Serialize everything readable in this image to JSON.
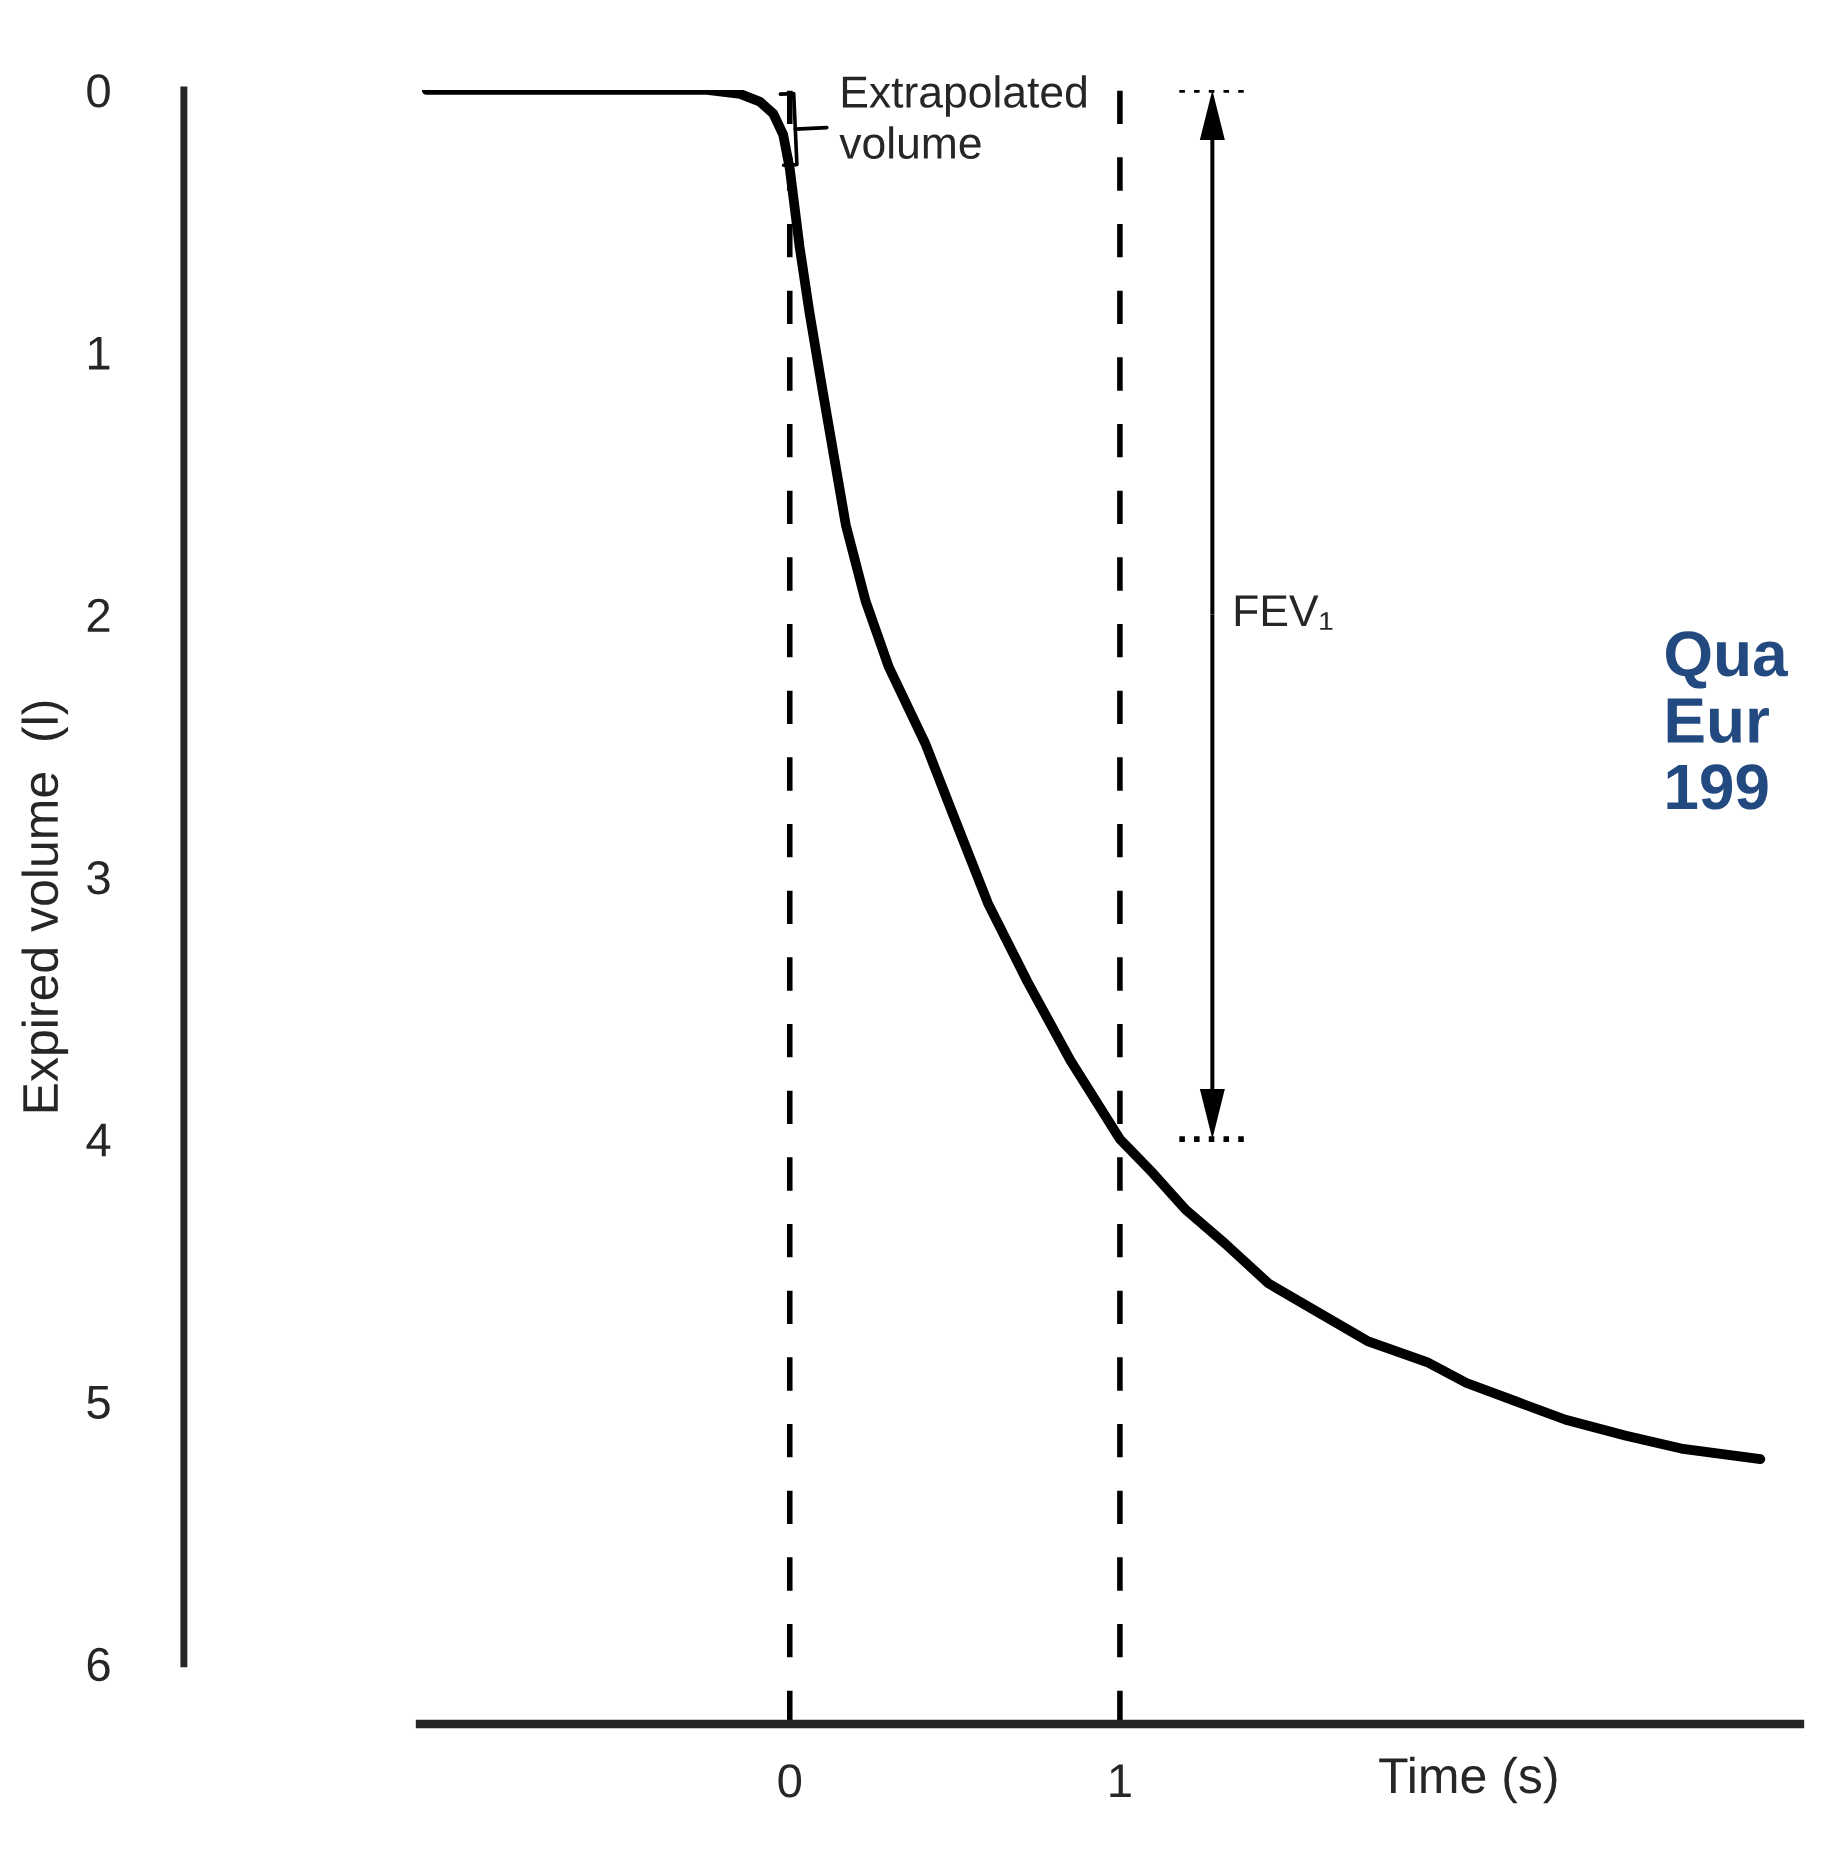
{
  "chart_data": {
    "type": "line",
    "xlabel": "Time (s)",
    "ylabel": "Expired volume  (l)",
    "series": [
      {
        "color": "#000000",
        "x": [
          -1.1,
          -0.25,
          -0.15,
          -0.09,
          -0.05,
          -0.02,
          0,
          0.03,
          0.06,
          0.1,
          0.17,
          0.23,
          0.3,
          0.41,
          0.5,
          0.6,
          0.72,
          0.85,
          0.9,
          1,
          1.1,
          1.2,
          1.32,
          1.45,
          1.6,
          1.75,
          1.93,
          2.05,
          2.2,
          2.35,
          2.53,
          2.7,
          2.94
        ],
        "values": [
          0,
          0,
          0.015,
          0.045,
          0.09,
          0.17,
          0.3,
          0.6,
          0.85,
          1.15,
          1.66,
          1.95,
          2.2,
          2.49,
          2.78,
          3.1,
          3.4,
          3.7,
          3.8,
          4.0,
          4.13,
          4.27,
          4.4,
          4.55,
          4.66,
          4.77,
          4.85,
          4.93,
          5.0,
          5.07,
          5.13,
          5.18,
          5.22
        ]
      }
    ],
    "xlim": [
      -1.12,
      3.06
    ],
    "xticks": [
      0,
      1
    ],
    "ylim": [
      6.23,
      0
    ],
    "yticks": [
      0,
      1,
      2,
      3,
      4,
      5,
      6
    ],
    "ref_lines": [
      {
        "axis": "x",
        "value": 0,
        "line_style": "dashed",
        "color": "#000000"
      },
      {
        "axis": "x",
        "value": 1,
        "line_style": "dashed",
        "color": "#000000"
      }
    ],
    "annotations": [
      {
        "text": "Extrapolated\nvolume",
        "x": 0,
        "y": 0.15
      },
      "FEV₁",
      "Qua\nEur\n199"
    ],
    "grid": false,
    "legend": false,
    "marker": "none",
    "line_style": "solid"
  }
}
